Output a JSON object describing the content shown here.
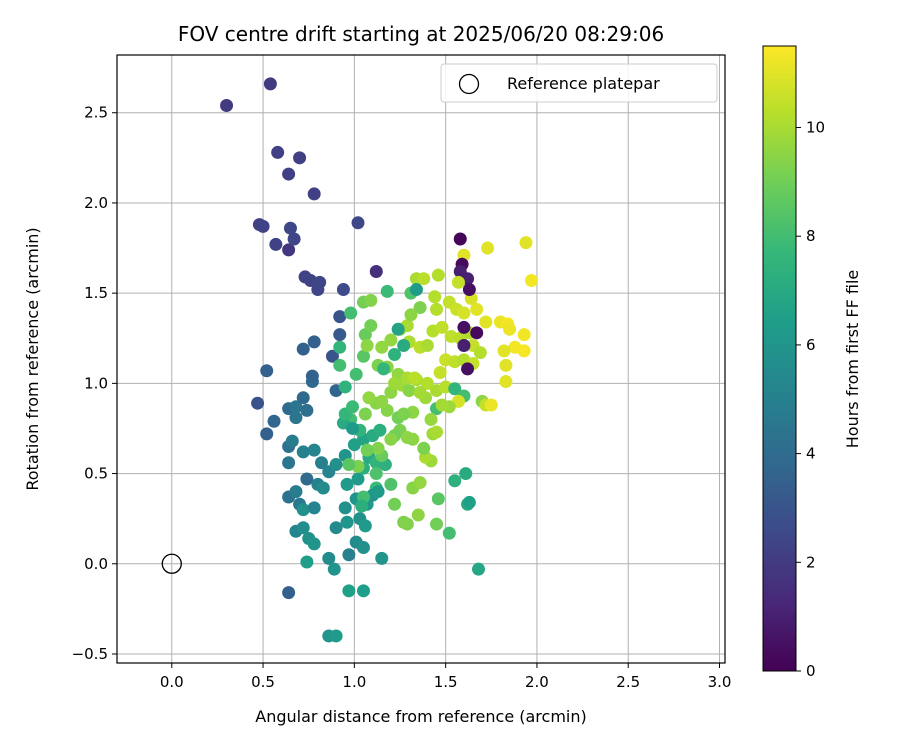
{
  "chart_data": {
    "type": "scatter",
    "title": "FOV centre drift starting at 2025/06/20 08:29:06",
    "xlabel": "Angular distance from reference (arcmin)",
    "ylabel": "Rotation from reference (arcmin)",
    "xlim": [
      -0.3,
      3.03
    ],
    "ylim": [
      -0.55,
      2.82
    ],
    "xticks": [
      "0.0",
      "0.5",
      "1.0",
      "1.5",
      "2.0",
      "2.5",
      "3.0"
    ],
    "yticks": [
      "−0.5",
      "0.0",
      "0.5",
      "1.0",
      "1.5",
      "2.0",
      "2.5"
    ],
    "grid": true,
    "legend": {
      "placement": "top-right",
      "entries": [
        "Reference platepar"
      ]
    },
    "reference_point": {
      "x": 0.0,
      "y": 0.0,
      "name": "Reference platepar"
    },
    "colorbar": {
      "label": "Hours from first FF file",
      "colormap": "viridis",
      "range": [
        0,
        11.5
      ],
      "ticks": [
        "0",
        "2",
        "4",
        "6",
        "8",
        "10"
      ]
    },
    "points": [
      [
        0.3,
        2.54,
        2
      ],
      [
        0.54,
        2.66,
        2
      ],
      [
        0.58,
        2.28,
        2.2
      ],
      [
        0.64,
        2.16,
        2.2
      ],
      [
        0.7,
        2.25,
        2.2
      ],
      [
        0.78,
        2.05,
        2.2
      ],
      [
        0.48,
        1.88,
        2.2
      ],
      [
        0.5,
        1.87,
        2.3
      ],
      [
        0.57,
        1.77,
        2.3
      ],
      [
        0.65,
        1.86,
        2.5
      ],
      [
        0.64,
        1.74,
        1.8
      ],
      [
        0.67,
        1.8,
        2.4
      ],
      [
        1.02,
        1.89,
        2.5
      ],
      [
        0.73,
        1.59,
        2.3
      ],
      [
        0.76,
        1.57,
        2.3
      ],
      [
        0.81,
        1.56,
        2.5
      ],
      [
        0.8,
        1.52,
        2.4
      ],
      [
        0.94,
        1.52,
        2.6
      ],
      [
        0.92,
        1.37,
        3
      ],
      [
        0.92,
        1.27,
        3.2
      ],
      [
        1.12,
        1.62,
        1.6
      ],
      [
        0.52,
        1.07,
        3.5
      ],
      [
        0.72,
        1.19,
        3.5
      ],
      [
        0.78,
        1.23,
        3.5
      ],
      [
        0.77,
        1.01,
        4
      ],
      [
        0.77,
        1.04,
        3.6
      ],
      [
        0.88,
        1.15,
        3
      ],
      [
        0.9,
        0.96,
        3.8
      ],
      [
        0.72,
        0.92,
        4
      ],
      [
        0.47,
        0.89,
        3
      ],
      [
        0.52,
        0.72,
        3.5
      ],
      [
        0.56,
        0.79,
        3.8
      ],
      [
        0.64,
        0.86,
        4
      ],
      [
        0.68,
        0.87,
        4.5
      ],
      [
        0.74,
        0.85,
        4.2
      ],
      [
        0.68,
        0.81,
        4.5
      ],
      [
        0.64,
        0.65,
        4.3
      ],
      [
        0.66,
        0.68,
        4.8
      ],
      [
        0.72,
        0.62,
        5
      ],
      [
        0.78,
        0.63,
        5.2
      ],
      [
        0.82,
        0.56,
        5
      ],
      [
        0.86,
        0.51,
        5.2
      ],
      [
        0.64,
        0.56,
        4.5
      ],
      [
        0.74,
        0.47,
        4
      ],
      [
        0.8,
        0.44,
        5
      ],
      [
        0.83,
        0.42,
        5.5
      ],
      [
        0.64,
        0.37,
        4.3
      ],
      [
        0.68,
        0.4,
        4.8
      ],
      [
        0.7,
        0.33,
        4.6
      ],
      [
        0.72,
        0.3,
        5.8
      ],
      [
        0.78,
        0.31,
        5.2
      ],
      [
        0.68,
        0.18,
        5.2
      ],
      [
        0.72,
        0.2,
        5.6
      ],
      [
        0.75,
        0.14,
        5.8
      ],
      [
        0.78,
        0.11,
        6
      ],
      [
        0.74,
        0.01,
        6.4
      ],
      [
        0.86,
        0.03,
        5.5
      ],
      [
        0.89,
        -0.03,
        6
      ],
      [
        0.64,
        -0.16,
        3.5
      ],
      [
        0.86,
        -0.4,
        6
      ],
      [
        0.9,
        -0.4,
        6.2
      ],
      [
        0.97,
        -0.15,
        6.5
      ],
      [
        1.05,
        -0.15,
        6.4
      ],
      [
        0.97,
        0.05,
        5
      ],
      [
        1.01,
        0.12,
        5.5
      ],
      [
        1.05,
        0.09,
        5.8
      ],
      [
        1.15,
        0.03,
        6
      ],
      [
        0.9,
        0.2,
        5.5
      ],
      [
        0.96,
        0.23,
        6
      ],
      [
        1.03,
        0.25,
        5.8
      ],
      [
        1.06,
        0.21,
        6.2
      ],
      [
        0.95,
        0.31,
        5.8
      ],
      [
        1.01,
        0.36,
        6
      ],
      [
        1.07,
        0.33,
        6.1
      ],
      [
        0.96,
        0.44,
        6.2
      ],
      [
        1.02,
        0.47,
        6.3
      ],
      [
        0.9,
        0.55,
        5.8
      ],
      [
        0.95,
        0.6,
        6
      ],
      [
        1.0,
        0.66,
        6.5
      ],
      [
        1.05,
        0.69,
        6.6
      ],
      [
        1.1,
        0.71,
        7
      ],
      [
        1.14,
        0.74,
        7.2
      ],
      [
        1.08,
        0.59,
        7
      ],
      [
        1.12,
        0.56,
        7.5
      ],
      [
        1.17,
        0.55,
        7.3
      ],
      [
        1.05,
        0.53,
        7.2
      ],
      [
        1.12,
        0.42,
        7.8
      ],
      [
        1.12,
        0.5,
        8.2
      ],
      [
        1.2,
        0.44,
        8.3
      ],
      [
        1.22,
        0.33,
        9
      ],
      [
        1.27,
        0.23,
        9.2
      ],
      [
        1.29,
        0.22,
        9.3
      ],
      [
        1.35,
        0.27,
        9.5
      ],
      [
        1.32,
        0.42,
        9.4
      ],
      [
        1.36,
        0.45,
        9.6
      ],
      [
        1.42,
        0.57,
        9.8
      ],
      [
        1.39,
        0.59,
        10
      ],
      [
        1.43,
        0.72,
        9.8
      ],
      [
        1.45,
        0.73,
        10
      ],
      [
        1.38,
        0.64,
        9.2
      ],
      [
        1.32,
        0.69,
        9.5
      ],
      [
        1.25,
        0.74,
        9.2
      ],
      [
        1.24,
        0.81,
        9
      ],
      [
        1.18,
        0.85,
        9.4
      ],
      [
        1.12,
        0.89,
        9.4
      ],
      [
        1.08,
        0.92,
        9.6
      ],
      [
        1.06,
        0.83,
        9.2
      ],
      [
        1.15,
        0.9,
        9.5
      ],
      [
        1.2,
        0.95,
        9.5
      ],
      [
        1.26,
        0.99,
        9.8
      ],
      [
        1.3,
        0.96,
        9.4
      ],
      [
        1.34,
        1.02,
        10
      ],
      [
        1.4,
        1.0,
        10.2
      ],
      [
        1.45,
        0.96,
        10
      ],
      [
        1.5,
        0.98,
        10.3
      ],
      [
        1.47,
        1.06,
        10.5
      ],
      [
        1.5,
        1.13,
        10.6
      ],
      [
        1.55,
        1.12,
        10.4
      ],
      [
        1.6,
        1.13,
        10.2
      ],
      [
        1.65,
        1.11,
        10.5
      ],
      [
        1.7,
        0.9,
        9.5
      ],
      [
        1.72,
        0.88,
        10.5
      ],
      [
        1.55,
        0.97,
        7.5
      ],
      [
        1.6,
        0.93,
        8
      ],
      [
        1.57,
        0.9,
        10.8
      ],
      [
        1.52,
        0.87,
        9.8
      ],
      [
        1.45,
        0.86,
        8
      ],
      [
        1.32,
        0.84,
        9.5
      ],
      [
        1.27,
        0.83,
        9.2
      ],
      [
        1.22,
        0.71,
        9
      ],
      [
        1.2,
        0.69,
        9.4
      ],
      [
        1.29,
        0.7,
        9.5
      ],
      [
        1.15,
        0.6,
        8.8
      ],
      [
        1.13,
        0.64,
        9.3
      ],
      [
        1.07,
        0.63,
        9
      ],
      [
        1.02,
        0.54,
        9.2
      ],
      [
        0.97,
        0.55,
        8.5
      ],
      [
        1.03,
        0.74,
        7.5
      ],
      [
        0.98,
        0.8,
        8
      ],
      [
        0.94,
        0.78,
        7
      ],
      [
        0.95,
        0.83,
        7.6
      ],
      [
        0.99,
        0.87,
        7.8
      ],
      [
        0.99,
        0.75,
        6.2
      ],
      [
        0.95,
        0.98,
        7.4
      ],
      [
        1.01,
        1.05,
        8
      ],
      [
        1.05,
        1.15,
        8.5
      ],
      [
        1.06,
        1.27,
        8.8
      ],
      [
        1.09,
        1.32,
        9
      ],
      [
        1.05,
        1.45,
        9
      ],
      [
        1.09,
        1.46,
        9.3
      ],
      [
        0.98,
        1.39,
        8
      ],
      [
        0.92,
        1.2,
        7.5
      ],
      [
        0.92,
        1.1,
        8
      ],
      [
        1.07,
        1.21,
        9.5
      ],
      [
        1.15,
        1.2,
        9.6
      ],
      [
        1.2,
        1.24,
        9.6
      ],
      [
        1.25,
        1.3,
        9.8
      ],
      [
        1.29,
        1.32,
        10
      ],
      [
        1.3,
        1.23,
        10.1
      ],
      [
        1.36,
        1.2,
        10.3
      ],
      [
        1.4,
        1.21,
        10
      ],
      [
        1.43,
        1.29,
        10.2
      ],
      [
        1.48,
        1.31,
        10.4
      ],
      [
        1.53,
        1.26,
        10.4
      ],
      [
        1.58,
        1.25,
        10.3
      ],
      [
        1.63,
        1.28,
        10.2
      ],
      [
        1.65,
        1.21,
        10.5
      ],
      [
        1.69,
        1.17,
        10.2
      ],
      [
        1.36,
        1.42,
        9.2
      ],
      [
        1.31,
        1.38,
        9.5
      ],
      [
        1.31,
        1.5,
        8.3
      ],
      [
        1.34,
        1.58,
        10
      ],
      [
        1.38,
        1.58,
        10.3
      ],
      [
        1.44,
        1.48,
        10.2
      ],
      [
        1.52,
        1.45,
        10.5
      ],
      [
        1.56,
        1.41,
        10.6
      ],
      [
        1.6,
        1.39,
        10.8
      ],
      [
        1.64,
        1.47,
        10.8
      ],
      [
        1.67,
        1.41,
        11
      ],
      [
        1.72,
        1.34,
        11
      ],
      [
        1.8,
        1.34,
        11.2
      ],
      [
        1.84,
        1.33,
        11.3
      ],
      [
        1.85,
        1.3,
        11.2
      ],
      [
        1.88,
        1.2,
        11.3
      ],
      [
        1.93,
        1.27,
        11.3
      ],
      [
        1.93,
        1.18,
        11.4
      ],
      [
        1.82,
        1.18,
        11
      ],
      [
        1.83,
        1.1,
        11
      ],
      [
        1.83,
        1.01,
        11
      ],
      [
        1.75,
        0.88,
        11.2
      ],
      [
        1.94,
        1.78,
        11
      ],
      [
        1.97,
        1.57,
        11.3
      ],
      [
        1.73,
        1.75,
        11
      ],
      [
        1.6,
        1.71,
        11
      ],
      [
        1.58,
        1.8,
        0.2
      ],
      [
        1.59,
        1.66,
        0.3
      ],
      [
        1.58,
        1.62,
        1
      ],
      [
        1.62,
        1.58,
        1
      ],
      [
        1.63,
        1.52,
        0.5
      ],
      [
        1.6,
        1.31,
        0.5
      ],
      [
        1.67,
        1.28,
        0.3
      ],
      [
        1.62,
        1.08,
        0.5
      ],
      [
        1.6,
        1.21,
        1
      ],
      [
        1.45,
        1.41,
        10.2
      ],
      [
        1.46,
        1.6,
        10.2
      ],
      [
        1.57,
        1.56,
        10.5
      ],
      [
        1.13,
        1.1,
        9.2
      ],
      [
        1.18,
        1.09,
        9.4
      ],
      [
        1.24,
        1.05,
        9.6
      ],
      [
        1.22,
        1.0,
        9.8
      ],
      [
        1.29,
        1.03,
        10
      ],
      [
        1.33,
        1.03,
        10.3
      ],
      [
        1.39,
        0.92,
        9.8
      ],
      [
        1.36,
        0.95,
        9.9
      ],
      [
        1.42,
        0.8,
        9.7
      ],
      [
        1.48,
        0.88,
        9.9
      ],
      [
        1.1,
        0.38,
        6
      ],
      [
        1.13,
        0.4,
        6.3
      ],
      [
        1.05,
        0.37,
        8
      ],
      [
        1.04,
        0.32,
        7.2
      ],
      [
        1.46,
        0.36,
        8.5
      ],
      [
        1.45,
        0.22,
        9
      ],
      [
        1.52,
        0.17,
        8
      ],
      [
        1.62,
        0.33,
        7
      ],
      [
        1.63,
        0.34,
        6.5
      ],
      [
        1.61,
        0.5,
        7
      ],
      [
        1.55,
        0.46,
        7.3
      ],
      [
        1.68,
        -0.03,
        6.8
      ],
      [
        1.18,
        1.51,
        7.8
      ],
      [
        1.24,
        1.3,
        6.6
      ],
      [
        1.34,
        1.52,
        6.3
      ],
      [
        1.27,
        1.21,
        7
      ],
      [
        1.22,
        1.16,
        7.4
      ],
      [
        1.16,
        1.08,
        7.6
      ]
    ]
  }
}
